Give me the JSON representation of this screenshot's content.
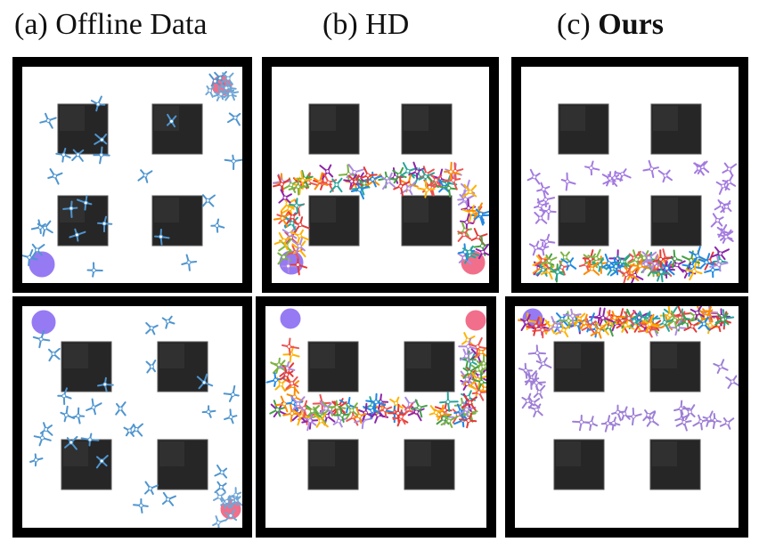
{
  "headings": {
    "a": {
      "prefix": "(a) ",
      "name": "Offline Data"
    },
    "b": {
      "prefix": "(b) ",
      "name": "HD"
    },
    "c": {
      "prefix": "(c) ",
      "name": "Ours"
    }
  },
  "colors": {
    "wall": "#000000",
    "obstacle": "#262626",
    "start_marker": "#8b6cf2",
    "goal_marker": "#f0607e",
    "offline_agent": "#4f95cf",
    "ours_top_agent": "#a37ae0",
    "ours_bottom_agent": "#9e7fd6",
    "mixed_palette": [
      "#e53935",
      "#43a047",
      "#ffb300",
      "#1e88e5",
      "#8e24aa",
      "#fb8c00",
      "#ad8be0",
      "#7cb342",
      "#ef5350",
      "#26a69a"
    ]
  },
  "marker_icons": [
    "start-circle-icon",
    "goal-circle-icon",
    "agent-icon",
    "obstacle-block-icon"
  ]
}
